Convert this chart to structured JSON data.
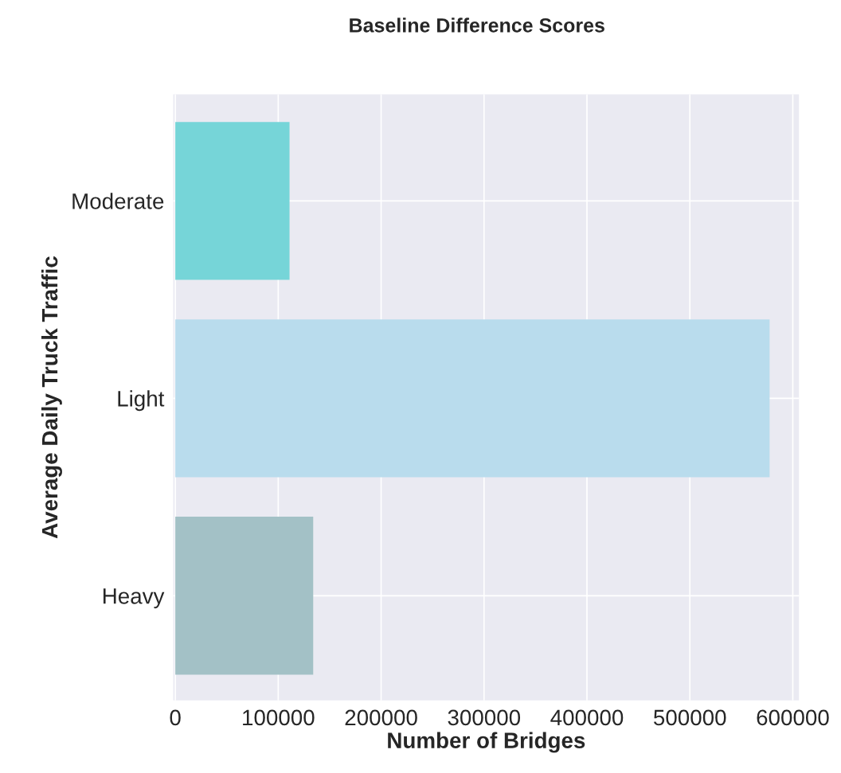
{
  "chart_data": {
    "type": "bar",
    "orientation": "horizontal",
    "title": "Baseline Difference Scores",
    "xlabel": "Number of Bridges",
    "ylabel": "Average Daily Truck Traffic",
    "categories": [
      "Moderate",
      "Light",
      "Heavy"
    ],
    "values": [
      111000,
      577500,
      134000
    ],
    "colors": [
      "#76d5d8",
      "#b9dced",
      "#a3c1c6"
    ],
    "xlim": [
      -2000,
      606000
    ],
    "xticks": [
      0,
      100000,
      200000,
      300000,
      400000,
      500000,
      600000
    ],
    "grid": true
  }
}
